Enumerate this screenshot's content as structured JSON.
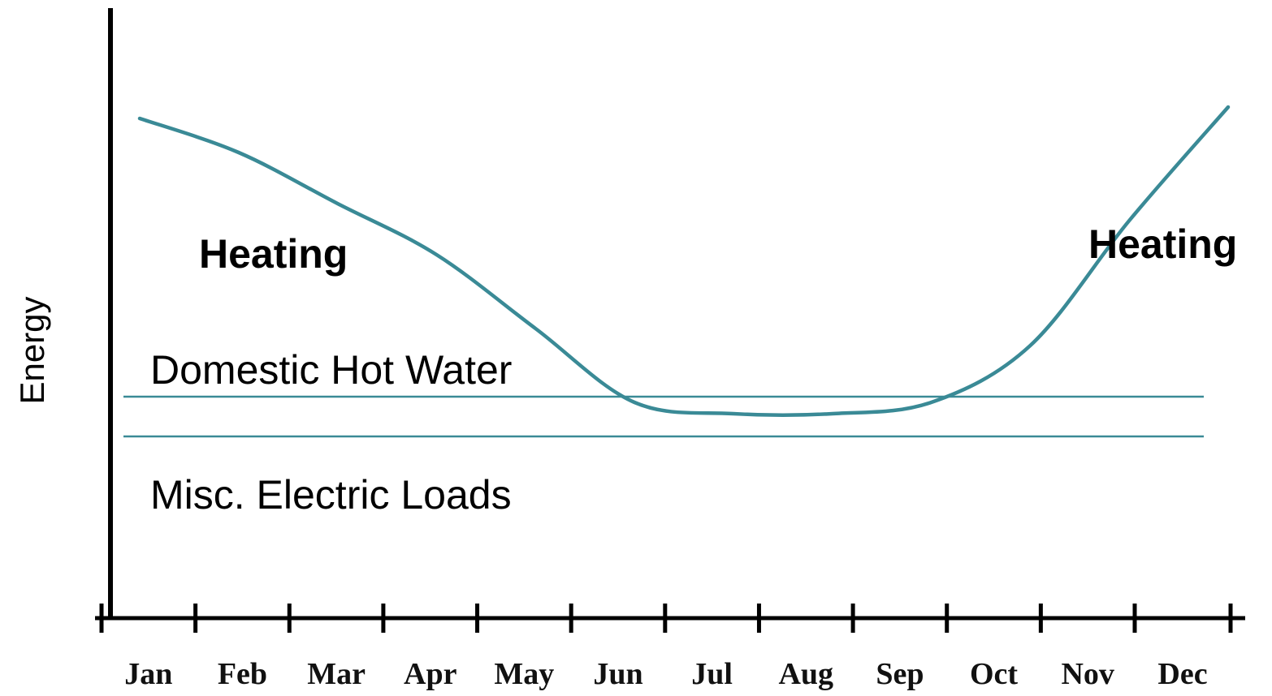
{
  "chart_data": {
    "type": "line",
    "title": "",
    "xlabel": "",
    "ylabel": "Energy",
    "categories": [
      "Jan",
      "Feb",
      "Mar",
      "Apr",
      "May",
      "Jun",
      "Jul",
      "Aug",
      "Sep",
      "Oct",
      "Nov",
      "Dec"
    ],
    "series": [
      {
        "values": [
          88,
          82,
          73,
          64,
          51,
          38,
          36,
          36,
          38,
          48,
          70,
          90
        ],
        "color": "#3a8a96"
      }
    ],
    "bands": [
      {
        "label": "Heating",
        "position": "above-curve-left"
      },
      {
        "label": "Heating",
        "position": "above-curve-right"
      },
      {
        "label": "Domestic Hot Water",
        "range": [
          32,
          39
        ]
      },
      {
        "label": "Misc. Electric Loads",
        "range": [
          0,
          32
        ]
      }
    ],
    "reference_lines": [
      {
        "y": 39,
        "color": "#3a8a96"
      },
      {
        "y": 32,
        "color": "#3a8a96"
      }
    ],
    "ylim": [
      0,
      100
    ],
    "grid": false,
    "y_ticks": false
  }
}
